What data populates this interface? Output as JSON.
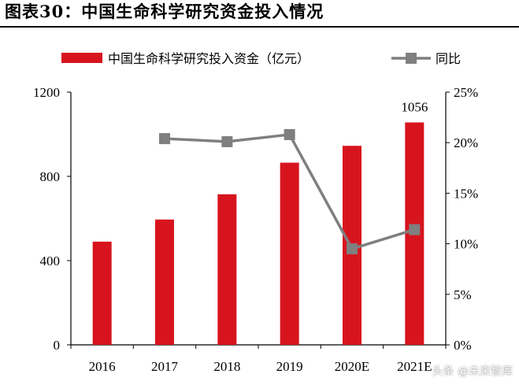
{
  "figure_title": "图表30：中国生命科学研究资金投入情况",
  "watermark": "头条 @未来智库",
  "colors": {
    "bar": "#D7141E",
    "line": "#7F7F7F"
  },
  "chart_data": {
    "type": "bar",
    "categories": [
      "2016",
      "2017",
      "2018",
      "2019",
      "2020E",
      "2021E"
    ],
    "series": [
      {
        "name": "中国生命科学研究投入资金（亿元）",
        "type": "bar",
        "axis": "left",
        "values": [
          490,
          595,
          715,
          865,
          945,
          1056
        ]
      },
      {
        "name": "同比",
        "type": "line",
        "axis": "right",
        "values": [
          null,
          0.204,
          0.201,
          0.208,
          0.095,
          0.114
        ]
      }
    ],
    "data_labels": [
      {
        "category": "2021E",
        "text": "1056"
      }
    ],
    "y_left": {
      "min": 0,
      "max": 1200,
      "ticks": [
        "0",
        "400",
        "800",
        "1200"
      ],
      "tick_values": [
        0,
        400,
        800,
        1200
      ]
    },
    "y_right": {
      "min": 0,
      "max": 0.25,
      "ticks": [
        "0%",
        "5%",
        "10%",
        "15%",
        "20%",
        "25%"
      ],
      "tick_values": [
        0,
        0.05,
        0.1,
        0.15,
        0.2,
        0.25
      ]
    },
    "legend_position": "top",
    "grid": false
  }
}
